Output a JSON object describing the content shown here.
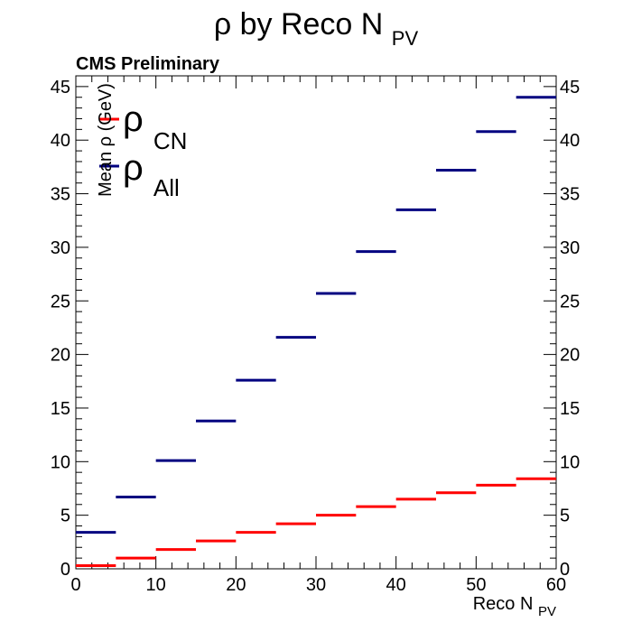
{
  "chart_data": {
    "type": "line",
    "title": "ρ by Reco N",
    "title_sub": "PV",
    "top_left_label": "CMS Preliminary",
    "xlabel": "Reco N",
    "xlabel_sub": "PV",
    "ylabel": "Mean ρ (GeV)",
    "xlim": [
      0,
      60
    ],
    "ylim": [
      0,
      46
    ],
    "x_ticks": [
      0,
      10,
      20,
      30,
      40,
      50,
      60
    ],
    "y_ticks": [
      0,
      5,
      10,
      15,
      20,
      25,
      30,
      35,
      40,
      45
    ],
    "bin_width": 5,
    "grid": false,
    "legend_position": "top-left",
    "series": [
      {
        "name": "ρ",
        "name_sub": "CN",
        "color": "#ff0000",
        "values": [
          {
            "x0": 0,
            "x1": 5,
            "y": 0.3
          },
          {
            "x0": 5,
            "x1": 10,
            "y": 1.0
          },
          {
            "x0": 10,
            "x1": 15,
            "y": 1.8
          },
          {
            "x0": 15,
            "x1": 20,
            "y": 2.6
          },
          {
            "x0": 20,
            "x1": 25,
            "y": 3.4
          },
          {
            "x0": 25,
            "x1": 30,
            "y": 4.2
          },
          {
            "x0": 30,
            "x1": 35,
            "y": 5.0
          },
          {
            "x0": 35,
            "x1": 40,
            "y": 5.8
          },
          {
            "x0": 40,
            "x1": 45,
            "y": 6.5
          },
          {
            "x0": 45,
            "x1": 50,
            "y": 7.1
          },
          {
            "x0": 50,
            "x1": 55,
            "y": 7.8
          },
          {
            "x0": 55,
            "x1": 60,
            "y": 8.4
          }
        ]
      },
      {
        "name": "ρ",
        "name_sub": "All",
        "color": "#000080",
        "values": [
          {
            "x0": 0,
            "x1": 5,
            "y": 3.4
          },
          {
            "x0": 5,
            "x1": 10,
            "y": 6.7
          },
          {
            "x0": 10,
            "x1": 15,
            "y": 10.1
          },
          {
            "x0": 15,
            "x1": 20,
            "y": 13.8
          },
          {
            "x0": 20,
            "x1": 25,
            "y": 17.6
          },
          {
            "x0": 25,
            "x1": 30,
            "y": 21.6
          },
          {
            "x0": 30,
            "x1": 35,
            "y": 25.7
          },
          {
            "x0": 35,
            "x1": 40,
            "y": 29.6
          },
          {
            "x0": 40,
            "x1": 45,
            "y": 33.5
          },
          {
            "x0": 45,
            "x1": 50,
            "y": 37.2
          },
          {
            "x0": 50,
            "x1": 55,
            "y": 40.8
          },
          {
            "x0": 55,
            "x1": 60,
            "y": 44.0
          }
        ]
      }
    ]
  }
}
